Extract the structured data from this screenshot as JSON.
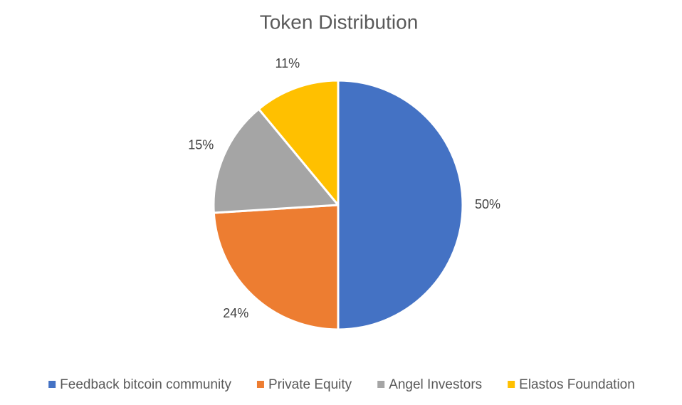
{
  "chart_data": {
    "type": "pie",
    "title": "Token Distribution",
    "categories": [
      "Feedback bitcoin community",
      "Private Equity",
      "Angel Investors",
      "Elastos Foundation"
    ],
    "values": [
      50,
      24,
      15,
      11
    ],
    "value_labels": [
      "50%",
      "24%",
      "15%",
      "11%"
    ],
    "colors": [
      "#4472c4",
      "#ed7d31",
      "#a5a5a5",
      "#ffc000"
    ],
    "legend": "bottom"
  }
}
